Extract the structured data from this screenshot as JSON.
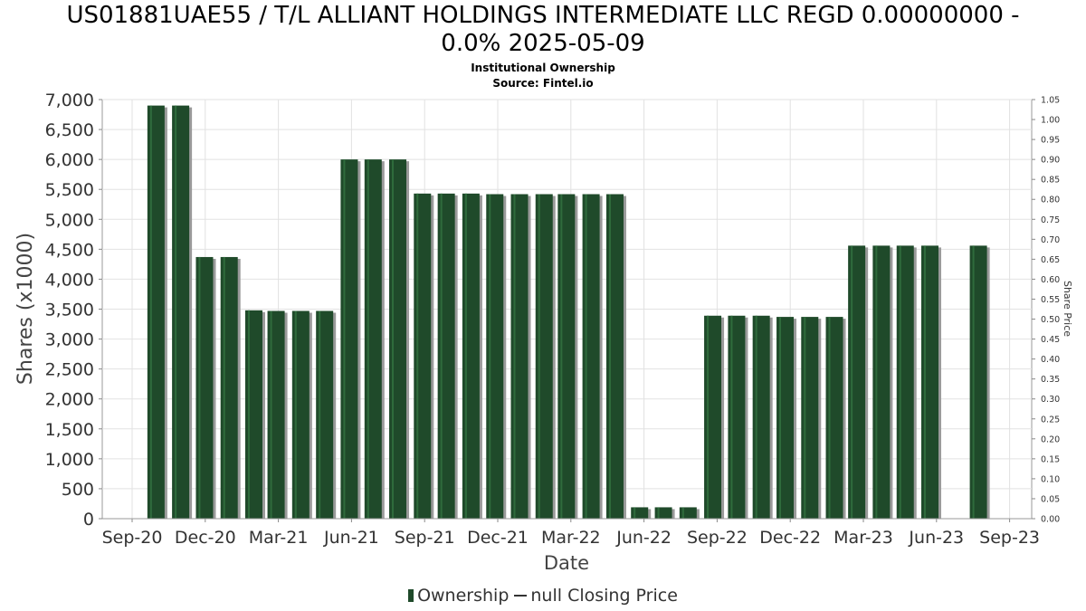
{
  "chart_data": {
    "type": "bar",
    "title": "US01881UAE55 / T/L ALLIANT HOLDINGS INTERMEDIATE LLC REGD 0.00000000 -",
    "title_line2": "0.0% 2025-05-09",
    "subtitle": "Institutional Ownership",
    "source": "Source: Fintel.io",
    "xlabel": "Date",
    "ylabel": "Shares (x1000)",
    "ylabel_right": "Share Price",
    "ylim": [
      0,
      7000
    ],
    "ylim_right": [
      0,
      1.05
    ],
    "y_ticks": [
      "0",
      "500",
      "1,000",
      "1,500",
      "2,000",
      "2,500",
      "3,000",
      "3,500",
      "4,000",
      "4,500",
      "5,000",
      "5,500",
      "6,000",
      "6,500",
      "7,000"
    ],
    "y_ticks_right": [
      "0.00",
      "0.05",
      "0.10",
      "0.15",
      "0.20",
      "0.25",
      "0.30",
      "0.35",
      "0.40",
      "0.45",
      "0.50",
      "0.55",
      "0.60",
      "0.65",
      "0.70",
      "0.75",
      "0.80",
      "0.85",
      "0.90",
      "0.95",
      "1.00",
      "1.05"
    ],
    "x_ticks": [
      "Sep-20",
      "Dec-20",
      "Mar-21",
      "Jun-21",
      "Sep-21",
      "Dec-21",
      "Mar-22",
      "Jun-22",
      "Sep-22",
      "Dec-22",
      "Mar-23",
      "Jun-23",
      "Sep-23"
    ],
    "grid": true,
    "legend_position": "bottom",
    "legend": [
      "Ownership",
      "null Closing Price"
    ],
    "bar_color": "#1f4a2a",
    "series": [
      {
        "name": "Ownership",
        "points": [
          {
            "x": "2020-10-15",
            "y": 6900
          },
          {
            "x": "2020-11-15",
            "y": 6900
          },
          {
            "x": "2020-12-15",
            "y": 4370
          },
          {
            "x": "2021-01-15",
            "y": 4370
          },
          {
            "x": "2021-02-15",
            "y": 3480
          },
          {
            "x": "2021-03-15",
            "y": 3470
          },
          {
            "x": "2021-04-15",
            "y": 3470
          },
          {
            "x": "2021-05-15",
            "y": 3470
          },
          {
            "x": "2021-06-15",
            "y": 6000
          },
          {
            "x": "2021-07-15",
            "y": 6000
          },
          {
            "x": "2021-08-15",
            "y": 6000
          },
          {
            "x": "2021-09-15",
            "y": 5430
          },
          {
            "x": "2021-10-15",
            "y": 5430
          },
          {
            "x": "2021-11-15",
            "y": 5430
          },
          {
            "x": "2021-12-15",
            "y": 5420
          },
          {
            "x": "2022-01-15",
            "y": 5420
          },
          {
            "x": "2022-02-15",
            "y": 5420
          },
          {
            "x": "2022-03-15",
            "y": 5420
          },
          {
            "x": "2022-04-15",
            "y": 5420
          },
          {
            "x": "2022-05-15",
            "y": 5420
          },
          {
            "x": "2022-06-15",
            "y": 190
          },
          {
            "x": "2022-07-15",
            "y": 190
          },
          {
            "x": "2022-08-15",
            "y": 190
          },
          {
            "x": "2022-09-15",
            "y": 3390
          },
          {
            "x": "2022-10-15",
            "y": 3390
          },
          {
            "x": "2022-11-15",
            "y": 3390
          },
          {
            "x": "2022-12-15",
            "y": 3370
          },
          {
            "x": "2023-01-15",
            "y": 3370
          },
          {
            "x": "2023-02-15",
            "y": 3370
          },
          {
            "x": "2023-03-15",
            "y": 4560
          },
          {
            "x": "2023-04-15",
            "y": 4560
          },
          {
            "x": "2023-05-15",
            "y": 4560
          },
          {
            "x": "2023-06-15",
            "y": 4560
          },
          {
            "x": "2023-08-15",
            "y": 4560
          }
        ]
      }
    ]
  }
}
